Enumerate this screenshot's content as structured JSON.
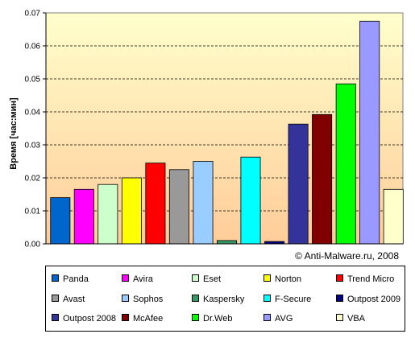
{
  "chart_data": {
    "type": "bar",
    "categories": [
      "Panda",
      "Avira",
      "Eset",
      "Norton",
      "Trend Micro",
      "Avast",
      "Sophos",
      "Kaspersky",
      "F-Secure",
      "Outpost 2009",
      "Outpost 2008",
      "McAfee",
      "Dr.Web",
      "AVG",
      "VBA"
    ],
    "values": [
      0.014,
      0.0165,
      0.018,
      0.02,
      0.0245,
      0.0225,
      0.025,
      0.001,
      0.0263,
      0.0007,
      0.0363,
      0.0392,
      0.0485,
      0.0675,
      0.0165
    ],
    "colors": [
      "#0066CC",
      "#FF00FF",
      "#CCFFCC",
      "#FFFF00",
      "#FF0000",
      "#999999",
      "#99CCFF",
      "#339966",
      "#00FFFF",
      "#000080",
      "#333399",
      "#800000",
      "#00FF00",
      "#9999FF",
      "#FFFFCC"
    ],
    "ylabel": "Время [час:мин]",
    "ylim": [
      0,
      0.07
    ],
    "yticks": [
      "0.00",
      "0.01",
      "0.02",
      "0.03",
      "0.04",
      "0.05",
      "0.06",
      "0.07"
    ],
    "grid": "horizontal dashed",
    "background_gradient": [
      "#FFFFCC",
      "#FFCC99"
    ],
    "legend_position": "bottom",
    "annotation": "© Anti-Malware.ru, 2008"
  }
}
